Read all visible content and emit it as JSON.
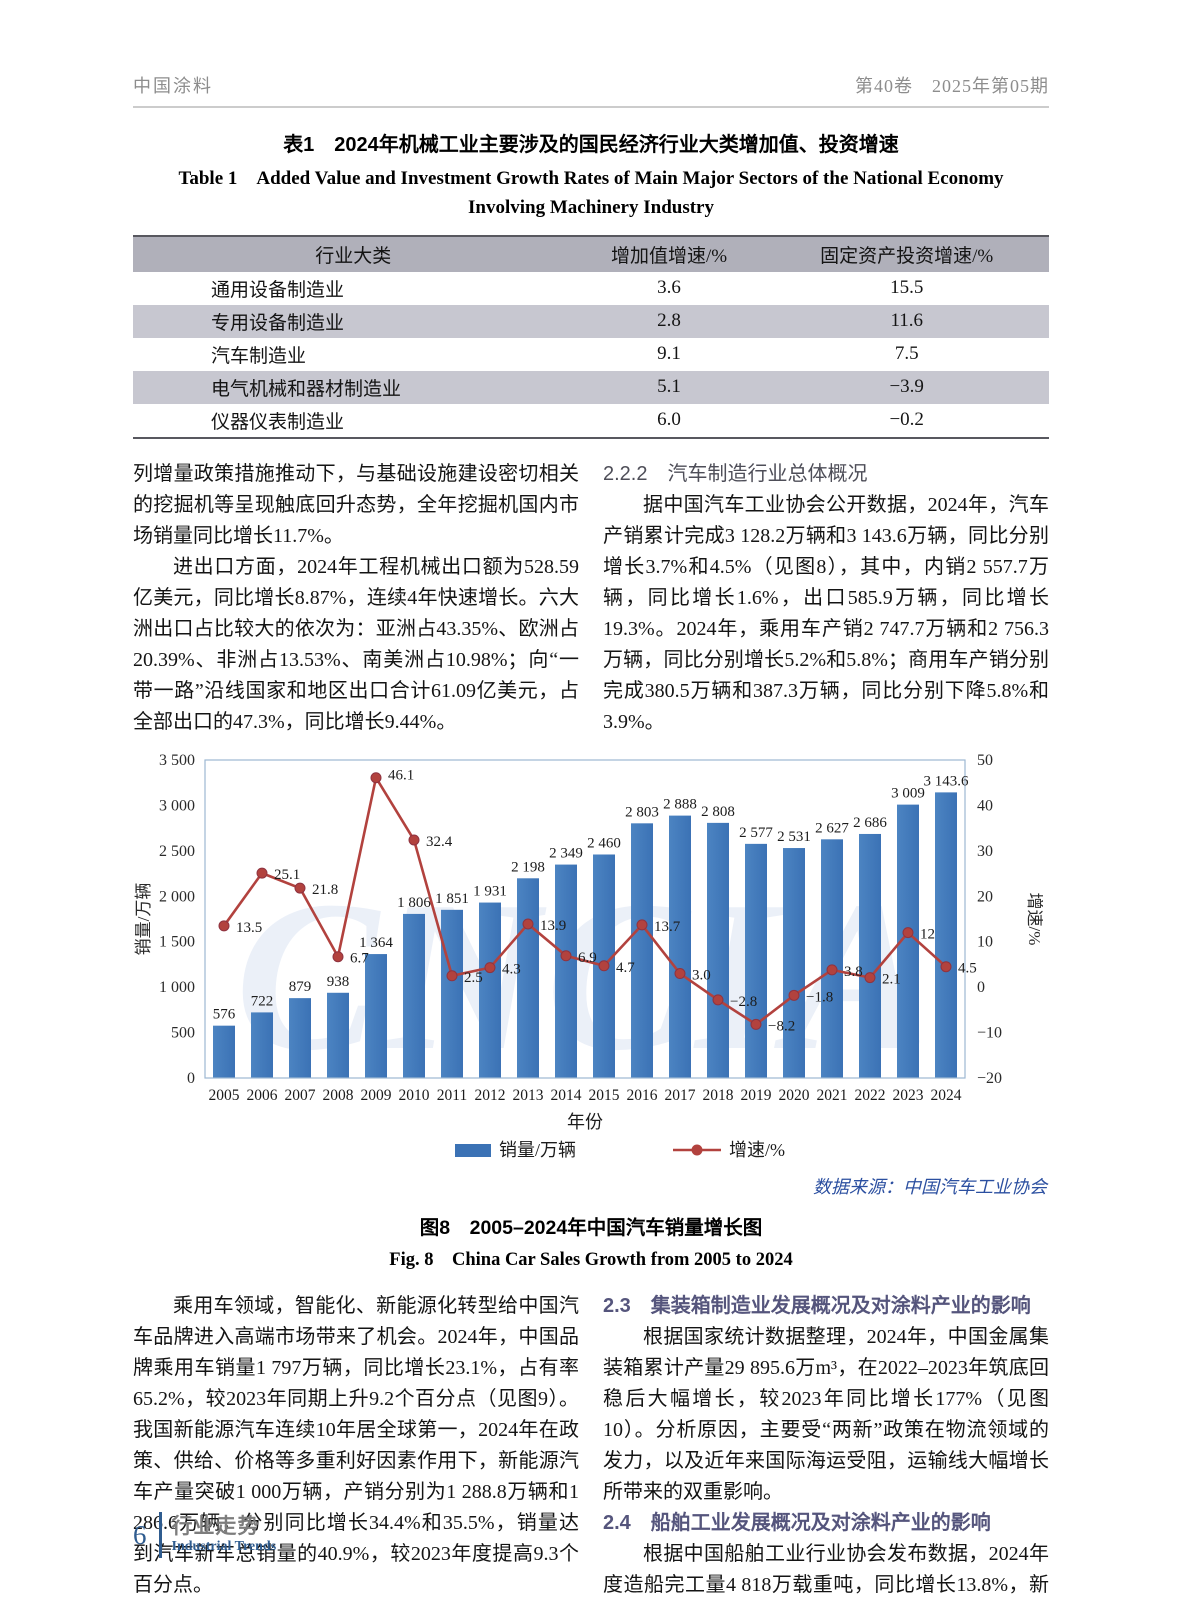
{
  "page": {
    "header": {
      "journal": "中国涂料",
      "issue": "第40卷　2025年第05期"
    },
    "table1": {
      "title_zh": "表1　2024年机械工业主要涉及的国民经济行业大类增加值、投资增速",
      "title_en": "Table 1　Added Value and Investment Growth Rates of Main Major Sectors of the National Economy Involving Machinery Industry",
      "columns": [
        "行业大类",
        "增加值增速/%",
        "固定资产投资增速/%"
      ],
      "rows": [
        [
          "通用设备制造业",
          "3.6",
          "15.5"
        ],
        [
          "专用设备制造业",
          "2.8",
          "11.6"
        ],
        [
          "汽车制造业",
          "9.1",
          "7.5"
        ],
        [
          "电气机械和器材制造业",
          "5.1",
          "−3.9"
        ],
        [
          "仪器仪表制造业",
          "6.0",
          "−0.2"
        ]
      ]
    },
    "top_left": {
      "p1": "列增量政策措施推动下，与基础设施建设密切相关的挖掘机等呈现触底回升态势，全年挖掘机国内市场销量同比增长11.7%。",
      "p2": "进出口方面，2024年工程机械出口额为528.59亿美元，同比增长8.87%，连续4年快速增长。六大洲出口占比较大的依次为：亚洲占43.35%、欧洲占20.39%、非洲占13.53%、南美洲占10.98%；向“一带一路”沿线国家和地区出口合计61.09亿美元，占全部出口的47.3%，同比增长9.44%。"
    },
    "top_right": {
      "heading": "2.2.2　汽车制造行业总体概况",
      "p1": "据中国汽车工业协会公开数据，2024年，汽车产销累计完成3 128.2万辆和3 143.6万辆，同比分别增长3.7%和4.5%（见图8），其中，内销2 557.7万辆，同比增长1.6%，出口585.9万辆，同比增长19.3%。2024年，乘用车产销2 747.7万辆和2 756.3万辆，同比分别增长5.2%和5.8%；商用车产销分别完成380.5万辆和387.3万辆，同比分别下降5.8%和3.9%。"
    },
    "figure8": {
      "caption_zh": "图8　2005–2024年中国汽车销量增长图",
      "caption_en": "Fig. 8　China Car Sales Growth from 2005 to 2024",
      "source": "数据来源：中国汽车工业协会"
    },
    "bottom_left": {
      "p1": "乘用车领域，智能化、新能源化转型给中国汽车品牌进入高端市场带来了机会。2024年，中国品牌乘用车销量1 797万辆，同比增长23.1%，占有率65.2%，较2023年同期上升9.2个百分点（见图9）。我国新能源汽车连续10年居全球第一，2024年在政策、供给、价格等多重利好因素作用下，新能源汽车产量突破1 000万辆，产销分别为1 288.8万辆和1 286.6万辆，分别同比增长34.4%和35.5%，销量达到汽车新车总销量的40.9%，较2023年度提高9.3个百分点。"
    },
    "bottom_right": {
      "heading_23": "2.3　集装箱制造业发展概况及对涂料产业的影响",
      "p1": "根据国家统计数据整理，2024年，中国金属集装箱累计产量29 895.6万m³，在2022–2023年筑底回稳后大幅增长，较2023年同比增长177%（见图10）。分析原因，主要受“两新”政策在物流领域的发力，以及近年来国际海运受阻，运输线大幅增长所带来的双重影响。",
      "heading_24": "2.4　船舶工业发展概况及对涂料产业的影响",
      "p2": "根据中国船舶工业行业协会发布数据，2024年度造船完工量4 818万载重吨，同比增长13.8%，新接"
    },
    "footer": {
      "page_number": "6",
      "column_zh": "行业走势",
      "column_en": "Industrial Trends"
    }
  },
  "chart_data": {
    "type": "combo-bar-line",
    "title": "",
    "x_categories": [
      "2005",
      "2006",
      "2007",
      "2008",
      "2009",
      "2010",
      "2011",
      "2012",
      "2013",
      "2014",
      "2015",
      "2016",
      "2017",
      "2018",
      "2019",
      "2020",
      "2021",
      "2022",
      "2023",
      "2024"
    ],
    "series": [
      {
        "name": "销量/万辆",
        "type": "bar",
        "axis": "left",
        "values": [
          576,
          722,
          879,
          938,
          1364,
          1806,
          1851,
          1931,
          2198,
          2349,
          2460,
          2803,
          2888,
          2808,
          2577,
          2531,
          2627,
          2686,
          3009,
          3143.6
        ],
        "labels": [
          "576",
          "722",
          "879",
          "938",
          "1 364",
          "1 806",
          "1 851",
          "1 931",
          "2 198",
          "2 349",
          "2 460",
          "2 803",
          "2 888",
          "2 808",
          "2 577",
          "2 531",
          "2 627",
          "2 686",
          "3 009",
          "3 143.6"
        ]
      },
      {
        "name": "增速/%",
        "type": "line",
        "axis": "right",
        "values": [
          13.5,
          25.1,
          21.8,
          6.7,
          46.1,
          32.4,
          2.5,
          4.3,
          13.9,
          6.9,
          4.7,
          13.7,
          3.0,
          -2.8,
          -8.2,
          -1.8,
          3.8,
          2.1,
          12,
          4.5
        ],
        "labels": [
          "13.5",
          "25.1",
          "21.8",
          "6.7",
          "46.1",
          "32.4",
          "2.5",
          "4.3",
          "13.9",
          "6.9",
          "4.7",
          "13.7",
          "3.0",
          "−2.8",
          "−8.2",
          "−1.8",
          "3.8",
          "2.1",
          "12",
          "4.5"
        ]
      }
    ],
    "axes": {
      "left": {
        "label": "销量/万辆",
        "min": 0,
        "max": 3500,
        "tick_labels": [
          "0",
          "500",
          "1 000",
          "1 500",
          "2 000",
          "2 500",
          "3 000",
          "3 500"
        ]
      },
      "right": {
        "label": "增速/%",
        "min": -20,
        "max": 50,
        "tick_labels": [
          "−20",
          "−10",
          "0",
          "10",
          "20",
          "30",
          "40",
          "50"
        ]
      }
    },
    "xlabel": "年份",
    "legend": [
      "销量/万辆",
      "增速/%"
    ],
    "legend_position": "bottom",
    "grid": false,
    "colors": {
      "bar": "#3b72b5",
      "bar_light": "#4c84c2",
      "line": "#b2423e",
      "plot_border": "#9db8d2"
    },
    "watermark": "CNCIA",
    "source": "数据来源：中国汽车工业协会"
  }
}
